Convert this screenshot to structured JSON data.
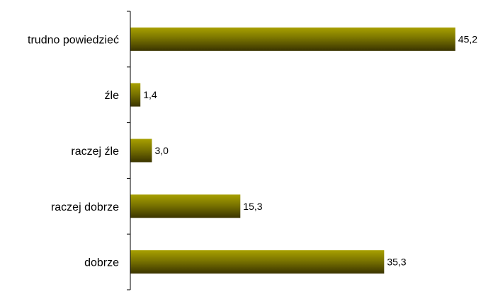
{
  "chart_data": {
    "type": "bar",
    "orientation": "horizontal",
    "categories": [
      "trudno powiedzieć",
      "źle",
      "raczej źle",
      "raczej dobrze",
      "dobrze"
    ],
    "values": [
      45.2,
      1.4,
      3.0,
      15.3,
      35.3
    ],
    "value_labels": [
      "45,2",
      "1,4",
      "3,0",
      "15,3",
      "35,3"
    ],
    "title": "",
    "xlabel": "",
    "ylabel": "",
    "xlim": [
      0,
      46.5
    ],
    "grid": false,
    "legend": "none",
    "colors": {
      "bar_light": "#a8a000",
      "bar_mid": "#7a7400",
      "bar_dark": "#3a3400",
      "axis": "#000000"
    }
  }
}
